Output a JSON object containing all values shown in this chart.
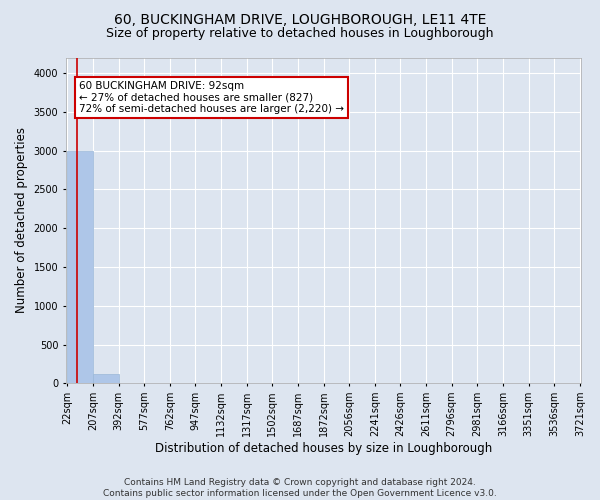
{
  "title": "60, BUCKINGHAM DRIVE, LOUGHBOROUGH, LE11 4TE",
  "subtitle": "Size of property relative to detached houses in Loughborough",
  "xlabel": "Distribution of detached houses by size in Loughborough",
  "ylabel": "Number of detached properties",
  "footer_line1": "Contains HM Land Registry data © Crown copyright and database right 2024.",
  "footer_line2": "Contains public sector information licensed under the Open Government Licence v3.0.",
  "bar_edges": [
    22,
    207,
    392,
    577,
    762,
    947,
    1132,
    1317,
    1502,
    1687,
    1872,
    2056,
    2241,
    2426,
    2611,
    2796,
    2981,
    3166,
    3351,
    3536,
    3721
  ],
  "bar_heights": [
    3000,
    120,
    0,
    0,
    0,
    0,
    0,
    0,
    0,
    0,
    0,
    0,
    0,
    0,
    0,
    0,
    0,
    0,
    0,
    0
  ],
  "bar_color": "#aec6e8",
  "bar_edge_color": "#9ab8d8",
  "property_size": 92,
  "property_line_color": "#cc0000",
  "annotation_line1": "60 BUCKINGHAM DRIVE: 92sqm",
  "annotation_line2": "← 27% of detached houses are smaller (827)",
  "annotation_line3": "72% of semi-detached houses are larger (2,220) →",
  "annotation_box_color": "#cc0000",
  "annotation_text_color": "#000000",
  "ylim": [
    0,
    4200
  ],
  "yticks": [
    0,
    500,
    1000,
    1500,
    2000,
    2500,
    3000,
    3500,
    4000
  ],
  "background_color": "#dde5f0",
  "plot_bg_color": "#dde5f0",
  "grid_color": "#ffffff",
  "title_fontsize": 10,
  "subtitle_fontsize": 9,
  "tick_label_fontsize": 7,
  "axis_label_fontsize": 8.5,
  "footer_fontsize": 6.5
}
